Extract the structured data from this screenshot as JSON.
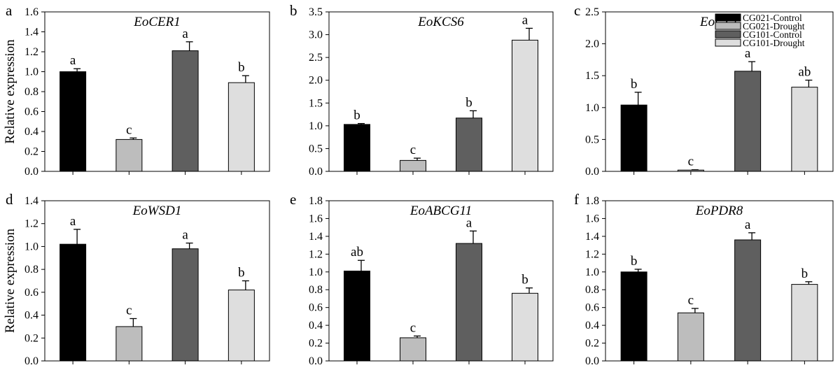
{
  "legend": {
    "placement": "top-right of panel c",
    "entries": [
      {
        "label": "CG021-Control",
        "color": "#000000"
      },
      {
        "label": "CG021-Drought",
        "color": "#bdbdbd"
      },
      {
        "label": "CG101-Control",
        "color": "#5f5f5f"
      },
      {
        "label": "CG101-Drought",
        "color": "#dedede"
      }
    ]
  },
  "chart_data": [
    {
      "type": "bar",
      "panel_label": "a",
      "title": "EoCER1",
      "ylabel": "Relative expression",
      "ylim": [
        0,
        1.6
      ],
      "yticks": [
        "0.0",
        "0.2",
        "0.4",
        "0.6",
        "0.8",
        "1.0",
        "1.2",
        "1.4",
        "1.6"
      ],
      "categories": [
        "CG021-Control",
        "CG021-Drought",
        "CG101-Control",
        "CG101-Drought"
      ],
      "values": [
        1.0,
        0.32,
        1.21,
        0.89
      ],
      "errors": [
        0.03,
        0.015,
        0.09,
        0.07
      ],
      "letters": [
        "a",
        "c",
        "a",
        "b"
      ]
    },
    {
      "type": "bar",
      "panel_label": "b",
      "title": "EoKCS6",
      "ylabel": "",
      "ylim": [
        0,
        3.5
      ],
      "yticks": [
        "0.0",
        "0.5",
        "1.0",
        "1.5",
        "2.0",
        "2.5",
        "3.0",
        "3.5"
      ],
      "categories": [
        "CG021-Control",
        "CG021-Drought",
        "CG101-Control",
        "CG101-Drought"
      ],
      "values": [
        1.03,
        0.24,
        1.17,
        2.88
      ],
      "errors": [
        0.02,
        0.05,
        0.16,
        0.26
      ],
      "letters": [
        "b",
        "c",
        "b",
        "a"
      ]
    },
    {
      "type": "bar",
      "panel_label": "c",
      "title": "EoGL1",
      "ylabel": "",
      "ylim": [
        0,
        2.5
      ],
      "yticks": [
        "0.0",
        "0.5",
        "1.0",
        "1.5",
        "2.0",
        "2.5"
      ],
      "categories": [
        "CG021-Control",
        "CG021-Drought",
        "CG101-Control",
        "CG101-Drought"
      ],
      "values": [
        1.04,
        0.02,
        1.57,
        1.32
      ],
      "errors": [
        0.2,
        0.005,
        0.15,
        0.11
      ],
      "letters": [
        "b",
        "c",
        "a",
        "ab"
      ]
    },
    {
      "type": "bar",
      "panel_label": "d",
      "title": "EoWSD1",
      "ylabel": "Relative expression",
      "ylim": [
        0,
        1.4
      ],
      "yticks": [
        "0.0",
        "0.2",
        "0.4",
        "0.6",
        "0.8",
        "1.0",
        "1.2",
        "1.4"
      ],
      "categories": [
        "CG021-Control",
        "CG021-Drought",
        "CG101-Control",
        "CG101-Drought"
      ],
      "values": [
        1.02,
        0.3,
        0.98,
        0.62
      ],
      "errors": [
        0.13,
        0.07,
        0.05,
        0.08
      ],
      "letters": [
        "a",
        "c",
        "a",
        "b"
      ]
    },
    {
      "type": "bar",
      "panel_label": "e",
      "title": "EoABCG11",
      "ylabel": "",
      "ylim": [
        0,
        1.8
      ],
      "yticks": [
        "0.0",
        "0.2",
        "0.4",
        "0.6",
        "0.8",
        "1.0",
        "1.2",
        "1.4",
        "1.6",
        "1.8"
      ],
      "categories": [
        "CG021-Control",
        "CG021-Drought",
        "CG101-Control",
        "CG101-Drought"
      ],
      "values": [
        1.01,
        0.26,
        1.32,
        0.76
      ],
      "errors": [
        0.12,
        0.02,
        0.14,
        0.06
      ],
      "letters": [
        "ab",
        "c",
        "a",
        "b"
      ]
    },
    {
      "type": "bar",
      "panel_label": "f",
      "title": "EoPDR8",
      "ylabel": "",
      "ylim": [
        0,
        1.8
      ],
      "yticks": [
        "0.0",
        "0.2",
        "0.4",
        "0.6",
        "0.8",
        "1.0",
        "1.2",
        "1.4",
        "1.6",
        "1.8"
      ],
      "categories": [
        "CG021-Control",
        "CG021-Drought",
        "CG101-Control",
        "CG101-Drought"
      ],
      "values": [
        1.0,
        0.54,
        1.36,
        0.86
      ],
      "errors": [
        0.03,
        0.05,
        0.08,
        0.03
      ],
      "letters": [
        "b",
        "c",
        "a",
        "b"
      ]
    }
  ]
}
